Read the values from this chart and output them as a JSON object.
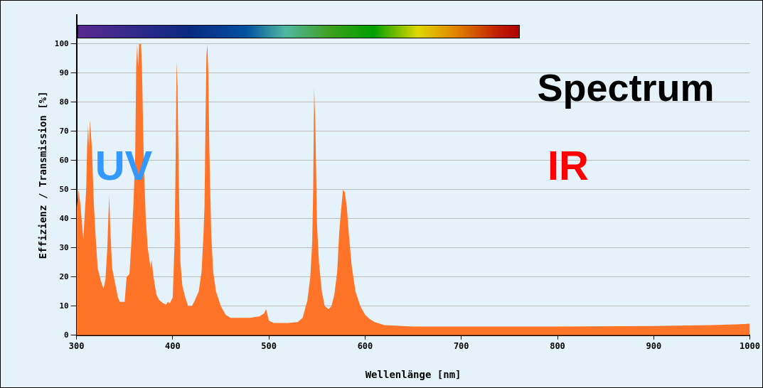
{
  "chart_data": {
    "type": "area",
    "title": "Spectrum",
    "xlabel": "Wellenlänge [nm]",
    "ylabel": "Effizienz / Transmission [%]",
    "annotations": [
      "UV",
      "IR"
    ],
    "xlim": [
      300,
      1000
    ],
    "xticks": [
      300,
      400,
      500,
      600,
      700,
      800,
      900,
      1000
    ],
    "ylim": [
      0,
      110
    ],
    "yticks": [
      0,
      10,
      20,
      30,
      40,
      50,
      60,
      70,
      80,
      90,
      100
    ],
    "grid": "y",
    "legend": false,
    "series": [
      {
        "color": "#ff7428",
        "x": [
          300,
          302,
          304,
          307,
          310,
          311,
          312,
          313,
          314,
          316,
          318,
          320,
          322,
          325,
          328,
          330,
          332,
          333,
          334,
          335,
          337,
          340,
          343,
          345,
          350,
          352,
          355,
          357,
          359,
          361,
          362,
          363,
          364,
          365,
          367,
          368,
          370,
          372,
          374,
          377,
          378,
          380,
          383,
          386,
          390,
          393,
          395,
          397,
          400,
          402,
          403,
          404,
          405,
          406,
          407,
          408,
          410,
          413,
          416,
          420,
          423,
          427,
          430,
          432,
          433,
          434,
          435,
          436,
          437,
          438,
          440,
          442,
          445,
          450,
          455,
          460,
          470,
          480,
          490,
          495,
          497,
          500,
          505,
          520,
          530,
          535,
          540,
          543,
          545,
          546,
          547,
          548,
          549,
          550,
          552,
          555,
          558,
          562,
          565,
          568,
          571,
          573,
          575,
          577,
          579,
          581,
          583,
          586,
          590,
          595,
          600,
          605,
          610,
          620,
          650,
          700,
          800,
          900,
          960,
          990,
          1000
        ],
        "values": [
          43,
          50,
          45,
          33,
          50,
          65,
          72,
          64,
          74,
          64,
          45,
          33,
          23,
          19,
          16,
          19,
          30,
          40,
          48,
          37,
          23,
          18,
          13,
          11.5,
          11.5,
          20,
          21,
          32,
          44,
          62,
          92,
          100,
          92,
          100,
          100,
          92,
          58,
          40,
          30,
          23,
          26,
          20,
          14,
          12,
          11,
          10.5,
          11.5,
          11,
          13,
          33,
          60,
          94,
          85,
          60,
          40,
          25,
          17,
          13,
          10,
          10,
          12,
          15,
          22,
          35,
          44,
          72,
          96,
          100,
          90,
          65,
          35,
          22,
          15,
          10,
          7,
          6,
          6,
          6,
          6.5,
          7.5,
          9,
          5,
          4.2,
          4.2,
          4.5,
          6,
          12,
          20,
          32,
          50,
          85,
          75,
          58,
          38,
          25,
          15,
          10,
          9,
          10,
          14,
          22,
          35,
          43,
          50,
          49,
          44,
          35,
          24,
          15,
          10,
          7,
          5.5,
          4.5,
          3.5,
          3,
          3,
          3,
          3.2,
          3.5,
          3.8,
          4
        ]
      }
    ]
  }
}
